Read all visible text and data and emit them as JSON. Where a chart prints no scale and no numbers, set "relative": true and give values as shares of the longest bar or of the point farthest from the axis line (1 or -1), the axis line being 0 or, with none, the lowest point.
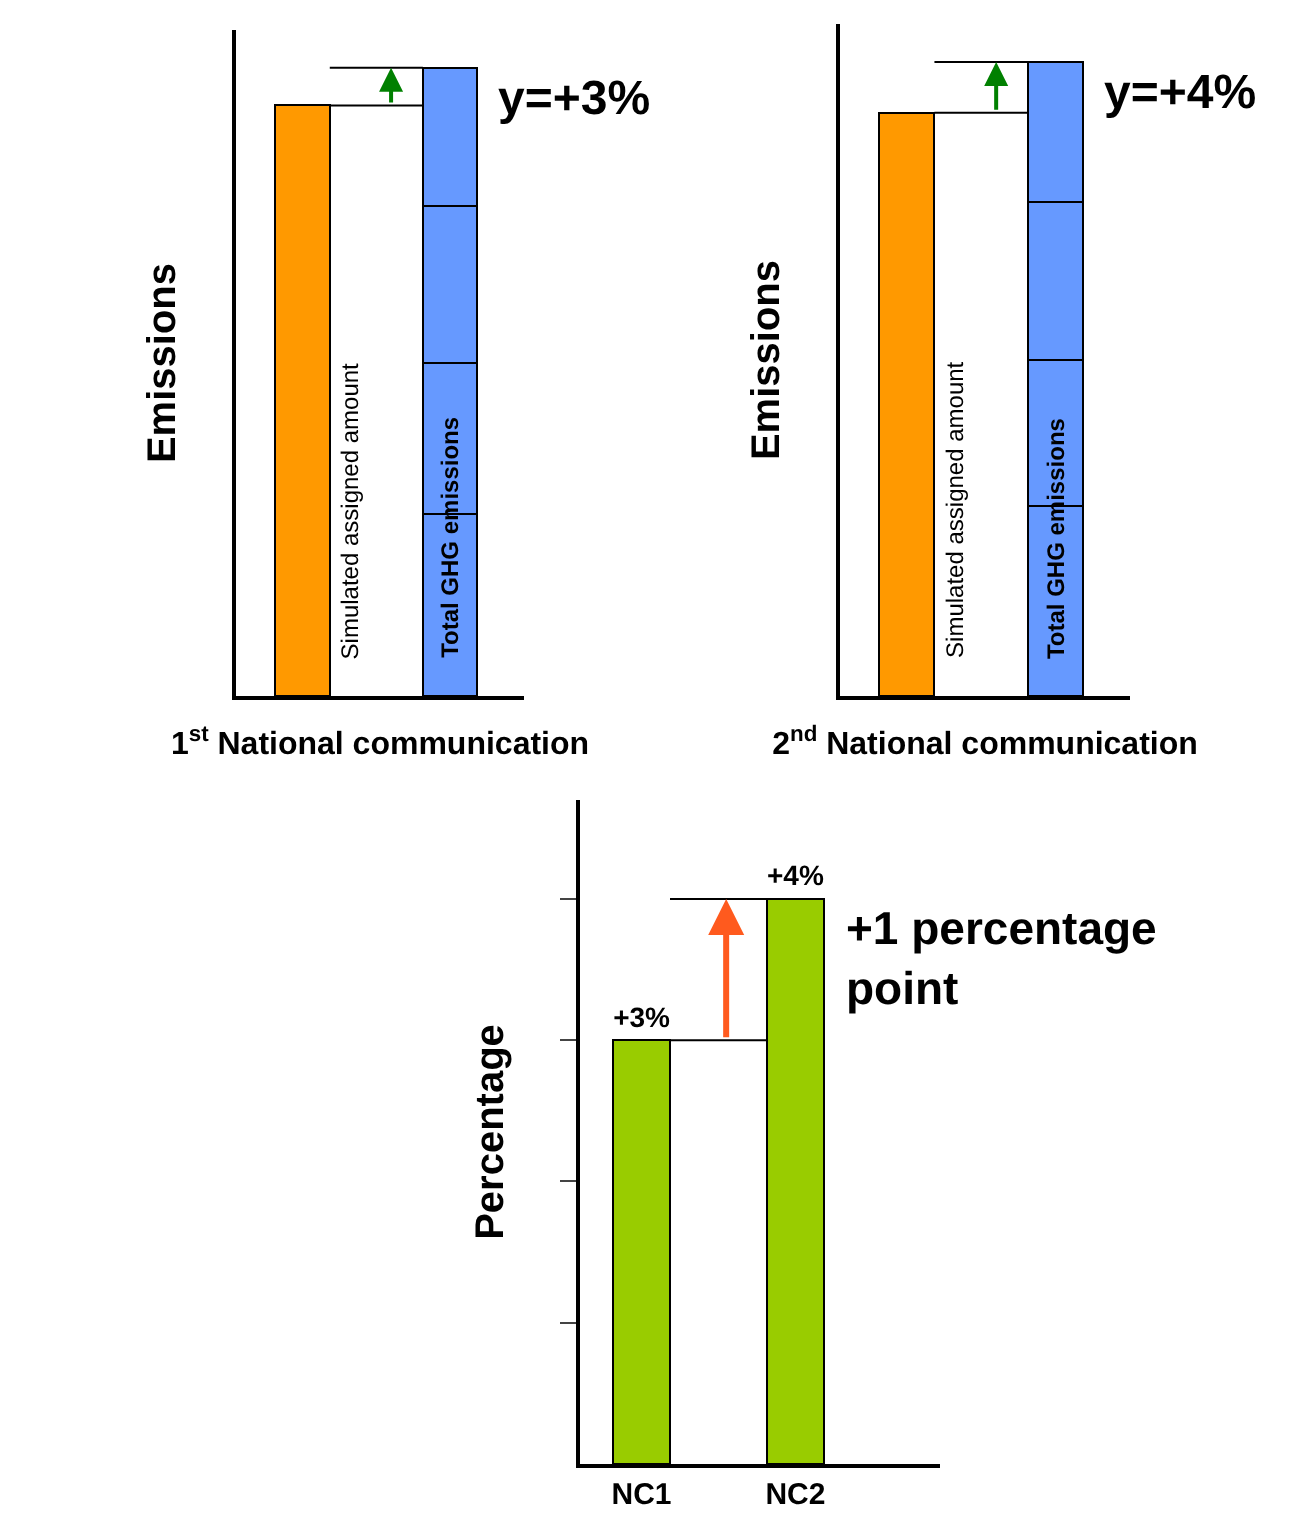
{
  "chart_data": [
    {
      "type": "bar",
      "stacked": true,
      "relative": true,
      "tick_labels": false,
      "categories": [
        "Simulated assigned amount",
        "Total GHG emissions"
      ],
      "xlabel": "1$^{st}$ National communication",
      "ylabel": "Emissions",
      "annotations": [
        "y=+3%"
      ],
      "ref_lines": [
        {
          "axis": "y",
          "value": 0.94
        },
        {
          "axis": "y",
          "value": 1
        }
      ],
      "series": [
        {
          "color": "#ff9900",
          "values": [
            0.94,
            null
          ]
        },
        {
          "color": "#6699ff",
          "values": [
            null,
            0.29
          ]
        },
        {
          "color": "#6699ff",
          "values": [
            null,
            0.24
          ]
        },
        {
          "color": "#6699ff",
          "values": [
            null,
            0.25
          ]
        },
        {
          "color": "#6699ff",
          "values": [
            null,
            0.22
          ]
        }
      ]
    },
    {
      "type": "bar",
      "stacked": true,
      "relative": true,
      "tick_labels": false,
      "categories": [
        "Simulated assigned amount",
        "Total GHG emissions"
      ],
      "xlabel": "2$^{nd}$ National communication",
      "ylabel": "Emissions",
      "annotations": [
        "y=+4%"
      ],
      "ref_lines": [
        {
          "axis": "y",
          "value": 0.92
        },
        {
          "axis": "y",
          "value": 1
        }
      ],
      "series": [
        {
          "color": "#ff9900",
          "values": [
            0.92,
            null
          ]
        },
        {
          "color": "#6699ff",
          "values": [
            null,
            0.3
          ]
        },
        {
          "color": "#6699ff",
          "values": [
            null,
            0.23
          ]
        },
        {
          "color": "#6699ff",
          "values": [
            null,
            0.25
          ]
        },
        {
          "color": "#6699ff",
          "values": [
            null,
            0.22
          ]
        }
      ]
    },
    {
      "type": "bar",
      "tick_labels": "x",
      "categories": [
        "NC1",
        "NC2"
      ],
      "ylabel": "Percentage",
      "annotations": [
        "+1 percentage point"
      ],
      "ref_lines": [
        {
          "axis": "y",
          "value": 3
        },
        {
          "axis": "y",
          "value": 4
        }
      ],
      "ylim": [
        0,
        4.7
      ],
      "yticks": [
        {
          "value": 1,
          "label": null
        },
        {
          "value": 2,
          "label": null
        },
        {
          "value": 3,
          "label": null
        },
        {
          "value": 4,
          "label": null
        }
      ],
      "series": [
        {
          "color": "#99cc00",
          "values": [
            3,
            4
          ],
          "value_labels": [
            "+3%",
            "+4%"
          ]
        }
      ]
    }
  ]
}
